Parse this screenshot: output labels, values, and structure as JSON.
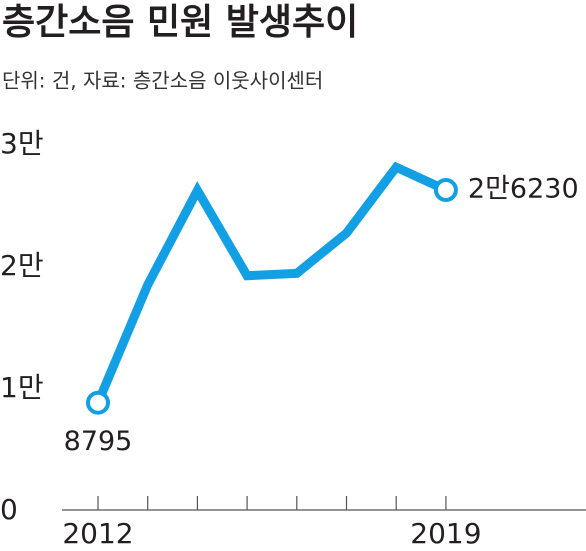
{
  "chart_data": {
    "type": "line",
    "title": "층간소음 민원 발생추이",
    "subtitle": "단위: 건, 자료: 층간소음 이웃사이센터",
    "categories": [
      "2012",
      null,
      null,
      null,
      null,
      null,
      null,
      "2019"
    ],
    "series": [
      {
        "name": null,
        "color": "#129fe3",
        "values": [
          8795,
          18450,
          26200,
          19200,
          19400,
          22700,
          28100,
          26230
        ],
        "value_labels": [
          "8795",
          null,
          null,
          null,
          null,
          null,
          null,
          "2만6230"
        ]
      }
    ],
    "ylim": [
      0,
      30000
    ],
    "yticks": [
      0,
      {
        "value": 10000,
        "label": "1만"
      },
      {
        "value": 20000,
        "label": "2만"
      },
      {
        "value": 30000,
        "label": "3만"
      }
    ]
  }
}
